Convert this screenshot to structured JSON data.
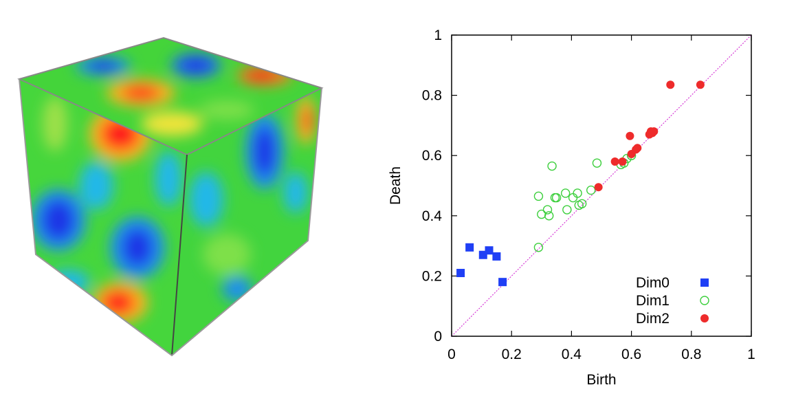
{
  "chart_data": {
    "type": "scatter",
    "xlabel": "Birth",
    "ylabel": "Death",
    "xlim": [
      0,
      1
    ],
    "ylim": [
      0,
      1
    ],
    "xticks": [
      "0",
      "0.2",
      "0.4",
      "0.6",
      "0.8",
      "1"
    ],
    "yticks": [
      "0",
      "0.2",
      "0.4",
      "0.6",
      "0.8",
      "1"
    ],
    "diagonal": true,
    "legend_position": "bottom-right",
    "series": [
      {
        "name": "Dim0",
        "marker": "filled-square",
        "color": "#1f3ff5",
        "points": [
          [
            0.03,
            0.21
          ],
          [
            0.06,
            0.295
          ],
          [
            0.105,
            0.27
          ],
          [
            0.125,
            0.285
          ],
          [
            0.15,
            0.265
          ],
          [
            0.17,
            0.18
          ]
        ]
      },
      {
        "name": "Dim1",
        "marker": "open-circle",
        "color": "#3dcf3d",
        "points": [
          [
            0.29,
            0.295
          ],
          [
            0.29,
            0.465
          ],
          [
            0.3,
            0.405
          ],
          [
            0.32,
            0.42
          ],
          [
            0.325,
            0.4
          ],
          [
            0.335,
            0.565
          ],
          [
            0.345,
            0.46
          ],
          [
            0.35,
            0.46
          ],
          [
            0.38,
            0.475
          ],
          [
            0.385,
            0.42
          ],
          [
            0.405,
            0.46
          ],
          [
            0.42,
            0.475
          ],
          [
            0.425,
            0.435
          ],
          [
            0.435,
            0.44
          ],
          [
            0.465,
            0.485
          ],
          [
            0.485,
            0.575
          ],
          [
            0.565,
            0.57
          ],
          [
            0.575,
            0.575
          ],
          [
            0.585,
            0.59
          ],
          [
            0.6,
            0.6
          ]
        ]
      },
      {
        "name": "Dim2",
        "marker": "filled-circle",
        "color": "#ee2b2b",
        "points": [
          [
            0.49,
            0.495
          ],
          [
            0.545,
            0.58
          ],
          [
            0.57,
            0.58
          ],
          [
            0.595,
            0.665
          ],
          [
            0.6,
            0.605
          ],
          [
            0.615,
            0.62
          ],
          [
            0.62,
            0.625
          ],
          [
            0.66,
            0.67
          ],
          [
            0.665,
            0.68
          ],
          [
            0.67,
            0.675
          ],
          [
            0.675,
            0.68
          ],
          [
            0.73,
            0.835
          ],
          [
            0.83,
            0.835
          ]
        ]
      }
    ]
  },
  "colors": {
    "diagonal": "#d63bd6",
    "cube_green": "#3ed43e",
    "cube_blue": "#1a35e6",
    "cube_red": "#ff1a1a",
    "cube_yellow": "#f2e43a",
    "cube_cyan": "#22b8e8"
  }
}
